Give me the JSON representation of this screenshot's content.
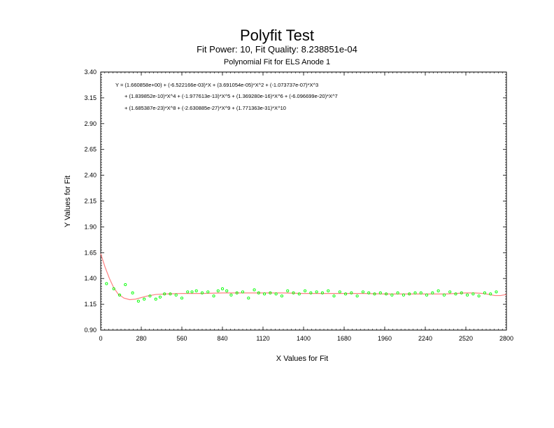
{
  "chart_data": {
    "type": "scatter",
    "title": "Polyfit Test",
    "subtitle": "Fit Power: 10, Fit Quality: 8.238851e-04",
    "subtitle2": "Polynomial Fit for ELS Anode 1",
    "xlabel": "X Values for Fit",
    "ylabel": "Y Values for Fit",
    "xlim": [
      0,
      2800
    ],
    "ylim": [
      0.9,
      3.4
    ],
    "xticks": [
      "0",
      "280",
      "560",
      "840",
      "1120",
      "1400",
      "1680",
      "1960",
      "2240",
      "2520",
      "2800"
    ],
    "yticks": [
      "0.90",
      "1.15",
      "1.40",
      "1.65",
      "1.90",
      "2.15",
      "2.40",
      "2.65",
      "2.90",
      "3.15",
      "3.40"
    ],
    "equation_lines": [
      "Y = (1.660858e+00) + (-6.522166e-03)*X + (3.691054e-05)*X^2 + (-1.073737e-07)*X^3",
      "+ (1.839852e-10)*X^4 + (-1.977613e-13)*X^5 + (1.369280e-16)*X^6 + (-6.096699e-20)*X^7",
      "+ (1.685387e-23)*X^8 + (-2.630885e-27)*X^9 + (1.771363e-31)*X^10"
    ],
    "series": [
      {
        "kind": "points",
        "color": "#00ff00",
        "x": [
          40,
          90,
          130,
          170,
          220,
          260,
          300,
          340,
          380,
          410,
          440,
          480,
          520,
          560,
          600,
          630,
          660,
          700,
          740,
          780,
          810,
          840,
          870,
          900,
          940,
          980,
          1020,
          1060,
          1090,
          1130,
          1170,
          1210,
          1250,
          1290,
          1330,
          1370,
          1410,
          1450,
          1490,
          1530,
          1570,
          1610,
          1650,
          1690,
          1730,
          1770,
          1810,
          1850,
          1890,
          1930,
          1970,
          2010,
          2050,
          2090,
          2130,
          2170,
          2210,
          2250,
          2290,
          2330,
          2370,
          2410,
          2450,
          2490,
          2530,
          2570,
          2610,
          2650,
          2690,
          2730
        ],
        "y": [
          1.35,
          1.3,
          1.24,
          1.34,
          1.26,
          1.18,
          1.2,
          1.23,
          1.2,
          1.22,
          1.25,
          1.25,
          1.24,
          1.21,
          1.27,
          1.27,
          1.28,
          1.26,
          1.27,
          1.23,
          1.28,
          1.3,
          1.28,
          1.24,
          1.26,
          1.27,
          1.21,
          1.29,
          1.26,
          1.25,
          1.26,
          1.25,
          1.23,
          1.28,
          1.26,
          1.25,
          1.28,
          1.26,
          1.27,
          1.26,
          1.28,
          1.23,
          1.27,
          1.25,
          1.26,
          1.23,
          1.27,
          1.26,
          1.25,
          1.26,
          1.25,
          1.24,
          1.26,
          1.24,
          1.25,
          1.26,
          1.26,
          1.24,
          1.26,
          1.28,
          1.24,
          1.27,
          1.25,
          1.26,
          1.24,
          1.25,
          1.23,
          1.26,
          1.25,
          1.27
        ]
      },
      {
        "kind": "fit-line",
        "color": "#ff8080",
        "x": [
          0,
          30,
          60,
          90,
          120,
          160,
          200,
          240,
          280,
          320,
          380,
          450,
          560,
          700,
          840,
          980,
          1120,
          1260,
          1400,
          1540,
          1680,
          1820,
          1960,
          2100,
          2240,
          2380,
          2450,
          2520,
          2580,
          2640,
          2680,
          2720,
          2760,
          2800
        ],
        "y": [
          1.64,
          1.51,
          1.4,
          1.31,
          1.25,
          1.21,
          1.195,
          1.2,
          1.215,
          1.23,
          1.245,
          1.25,
          1.255,
          1.255,
          1.26,
          1.26,
          1.26,
          1.26,
          1.255,
          1.255,
          1.255,
          1.255,
          1.25,
          1.25,
          1.25,
          1.25,
          1.255,
          1.26,
          1.26,
          1.255,
          1.245,
          1.235,
          1.235,
          1.245
        ]
      }
    ]
  }
}
